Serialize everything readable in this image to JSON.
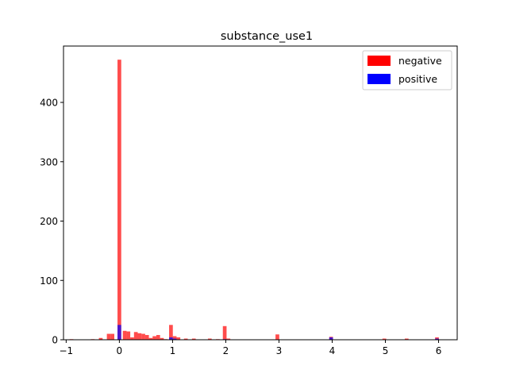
{
  "chart_data": {
    "type": "bar",
    "title": "substance_use1",
    "xlabel": "",
    "ylabel": "",
    "xlim": [
      -1.05,
      6.35
    ],
    "ylim": [
      0,
      495
    ],
    "x_ticks": [
      -1,
      0,
      1,
      2,
      3,
      4,
      5,
      6
    ],
    "y_ticks": [
      0,
      100,
      200,
      300,
      400
    ],
    "bin_width": 0.07,
    "grid": false,
    "legend_position": "top-right",
    "series": [
      {
        "name": "negative",
        "color": "#ff0000",
        "opacity": 0.7,
        "bins": [
          {
            "x": -0.9,
            "count": 1
          },
          {
            "x": -0.5,
            "count": 1
          },
          {
            "x": -0.35,
            "count": 3
          },
          {
            "x": -0.2,
            "count": 10
          },
          {
            "x": -0.13,
            "count": 10
          },
          {
            "x": 0.0,
            "count": 472
          },
          {
            "x": 0.1,
            "count": 15
          },
          {
            "x": 0.17,
            "count": 14
          },
          {
            "x": 0.24,
            "count": 4
          },
          {
            "x": 0.31,
            "count": 13
          },
          {
            "x": 0.38,
            "count": 11
          },
          {
            "x": 0.45,
            "count": 10
          },
          {
            "x": 0.52,
            "count": 8
          },
          {
            "x": 0.59,
            "count": 3
          },
          {
            "x": 0.66,
            "count": 6
          },
          {
            "x": 0.73,
            "count": 8
          },
          {
            "x": 0.8,
            "count": 3
          },
          {
            "x": 0.87,
            "count": 1
          },
          {
            "x": 0.97,
            "count": 25
          },
          {
            "x": 1.04,
            "count": 6
          },
          {
            "x": 1.11,
            "count": 4
          },
          {
            "x": 1.25,
            "count": 2
          },
          {
            "x": 1.4,
            "count": 2
          },
          {
            "x": 1.7,
            "count": 2
          },
          {
            "x": 1.85,
            "count": 1
          },
          {
            "x": 1.98,
            "count": 23
          },
          {
            "x": 2.05,
            "count": 2
          },
          {
            "x": 2.97,
            "count": 9
          },
          {
            "x": 3.98,
            "count": 5
          },
          {
            "x": 4.98,
            "count": 2
          },
          {
            "x": 5.4,
            "count": 2
          },
          {
            "x": 5.97,
            "count": 4
          }
        ]
      },
      {
        "name": "positive",
        "color": "#0000ff",
        "opacity": 0.7,
        "bins": [
          {
            "x": 0.0,
            "count": 25
          },
          {
            "x": 0.97,
            "count": 4
          },
          {
            "x": 1.04,
            "count": 2
          },
          {
            "x": 1.98,
            "count": 1
          },
          {
            "x": 3.98,
            "count": 4
          },
          {
            "x": 5.97,
            "count": 2
          }
        ]
      }
    ]
  }
}
